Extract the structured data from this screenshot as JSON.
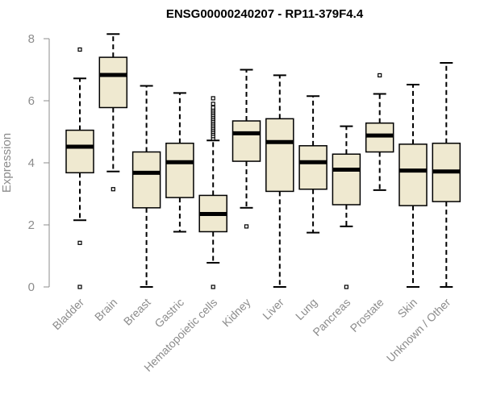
{
  "chart_data": {
    "type": "box",
    "title": "ENSG00000240207 - RP11-379F4.4",
    "xlabel": "",
    "ylabel": "Expression",
    "ylim": [
      0,
      8.3
    ],
    "yticks": [
      0,
      2,
      4,
      6,
      8
    ],
    "colors": {
      "box_fill": "#efe9d0",
      "median": "#000000",
      "axis": "#8c8c8c"
    },
    "categories": [
      "Bladder",
      "Brain",
      "Breast",
      "Gastric",
      "Hematopoietic cells",
      "Kidney",
      "Liver",
      "Lung",
      "Pancreas",
      "Prostate",
      "Skin",
      "Unknown / Other"
    ],
    "boxes": [
      {
        "category": "Bladder",
        "whisker_low": 2.15,
        "q1": 3.68,
        "median": 4.52,
        "q3": 5.05,
        "whisker_high": 6.72,
        "outliers": [
          7.65,
          1.42,
          0.0
        ]
      },
      {
        "category": "Brain",
        "whisker_low": 3.72,
        "q1": 5.78,
        "median": 6.83,
        "q3": 7.4,
        "whisker_high": 8.15,
        "outliers": [
          3.15
        ]
      },
      {
        "category": "Breast",
        "whisker_low": 0.0,
        "q1": 2.55,
        "median": 3.68,
        "q3": 4.35,
        "whisker_high": 6.48,
        "outliers": []
      },
      {
        "category": "Gastric",
        "whisker_low": 1.78,
        "q1": 2.88,
        "median": 4.02,
        "q3": 4.63,
        "whisker_high": 6.25,
        "outliers": []
      },
      {
        "category": "Hematopoietic cells",
        "whisker_low": 0.78,
        "q1": 1.78,
        "median": 2.35,
        "q3": 2.95,
        "whisker_high": 4.72,
        "outliers": [
          4.78,
          4.86,
          4.94,
          5.0,
          5.06,
          5.12,
          5.18,
          5.24,
          5.3,
          5.36,
          5.42,
          5.48,
          5.54,
          5.6,
          5.66,
          5.72,
          5.78,
          5.9,
          6.08,
          0.0
        ]
      },
      {
        "category": "Kidney",
        "whisker_low": 2.55,
        "q1": 4.05,
        "median": 4.95,
        "q3": 5.35,
        "whisker_high": 7.0,
        "outliers": [
          1.95
        ]
      },
      {
        "category": "Liver",
        "whisker_low": 0.0,
        "q1": 3.08,
        "median": 4.67,
        "q3": 5.42,
        "whisker_high": 6.82,
        "outliers": []
      },
      {
        "category": "Lung",
        "whisker_low": 1.75,
        "q1": 3.15,
        "median": 4.02,
        "q3": 4.55,
        "whisker_high": 6.15,
        "outliers": []
      },
      {
        "category": "Pancreas",
        "whisker_low": 1.95,
        "q1": 2.65,
        "median": 3.78,
        "q3": 4.28,
        "whisker_high": 5.18,
        "outliers": [
          0.0
        ]
      },
      {
        "category": "Prostate",
        "whisker_low": 3.12,
        "q1": 4.35,
        "median": 4.88,
        "q3": 5.28,
        "whisker_high": 6.22,
        "outliers": [
          6.82
        ]
      },
      {
        "category": "Skin",
        "whisker_low": 0.0,
        "q1": 2.62,
        "median": 3.75,
        "q3": 4.6,
        "whisker_high": 6.52,
        "outliers": []
      },
      {
        "category": "Unknown / Other",
        "whisker_low": 0.0,
        "q1": 2.75,
        "median": 3.72,
        "q3": 4.63,
        "whisker_high": 7.22,
        "outliers": []
      }
    ]
  }
}
